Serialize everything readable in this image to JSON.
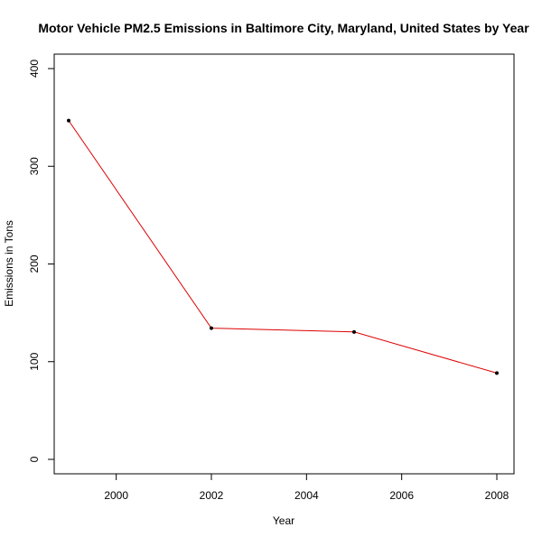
{
  "chart_data": {
    "type": "line",
    "title": "Motor Vehicle PM2.5 Emissions in Baltimore City, Maryland, United States by Year",
    "xlabel": "Year",
    "ylabel": "Emissions in Tons",
    "x": [
      1999,
      2002,
      2005,
      2008
    ],
    "series": [
      {
        "values": [
          346.8,
          134.3,
          130.4,
          88.3
        ]
      }
    ],
    "xlim": [
      1999,
      2008
    ],
    "ylim": [
      0,
      400
    ],
    "xticks": [
      2000,
      2002,
      2004,
      2006,
      2008
    ],
    "yticks": [
      0,
      100,
      200,
      300,
      400
    ],
    "grid": false,
    "legend": "none",
    "colors": {
      "line": "#dd0000",
      "point": "#000000",
      "axes": "#000000"
    }
  }
}
